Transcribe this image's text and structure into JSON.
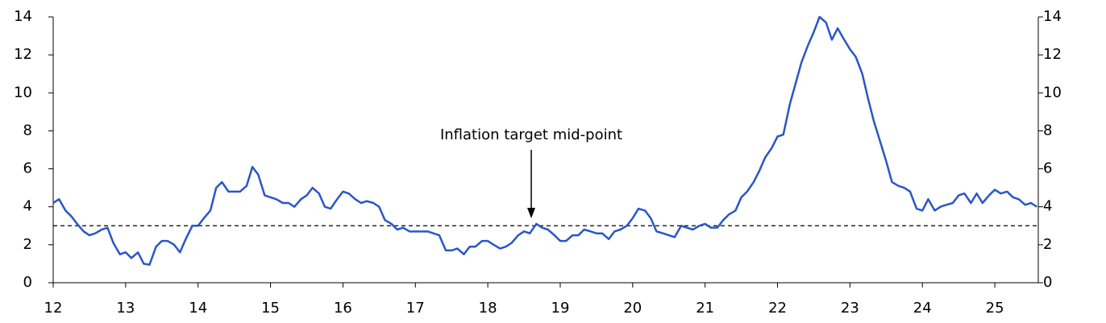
{
  "chart_data": {
    "type": "line",
    "x": [
      12,
      12.08,
      12.17,
      12.25,
      12.33,
      12.42,
      12.5,
      12.58,
      12.67,
      12.75,
      12.83,
      12.92,
      13,
      13.08,
      13.17,
      13.25,
      13.33,
      13.42,
      13.5,
      13.58,
      13.67,
      13.75,
      13.83,
      13.92,
      14,
      14.08,
      14.17,
      14.25,
      14.33,
      14.42,
      14.5,
      14.58,
      14.67,
      14.75,
      14.83,
      14.92,
      15,
      15.08,
      15.17,
      15.25,
      15.33,
      15.42,
      15.5,
      15.58,
      15.67,
      15.75,
      15.83,
      15.92,
      16,
      16.08,
      16.17,
      16.25,
      16.33,
      16.42,
      16.5,
      16.58,
      16.67,
      16.75,
      16.83,
      16.92,
      17,
      17.08,
      17.17,
      17.25,
      17.33,
      17.42,
      17.5,
      17.58,
      17.67,
      17.75,
      17.83,
      17.92,
      18,
      18.08,
      18.17,
      18.25,
      18.33,
      18.42,
      18.5,
      18.58,
      18.67,
      18.75,
      18.83,
      18.92,
      19,
      19.08,
      19.17,
      19.25,
      19.33,
      19.42,
      19.5,
      19.58,
      19.67,
      19.75,
      19.83,
      19.92,
      20,
      20.08,
      20.17,
      20.25,
      20.33,
      20.42,
      20.5,
      20.58,
      20.67,
      20.75,
      20.83,
      20.92,
      21,
      21.08,
      21.17,
      21.25,
      21.33,
      21.42,
      21.5,
      21.58,
      21.67,
      21.75,
      21.83,
      21.92,
      22,
      22.08,
      22.17,
      22.25,
      22.33,
      22.42,
      22.5,
      22.58,
      22.67,
      22.75,
      22.83,
      22.92,
      23,
      23.08,
      23.17,
      23.25,
      23.33,
      23.42,
      23.5,
      23.58,
      23.67,
      23.75,
      23.83,
      23.92,
      24,
      24.08,
      24.17,
      24.25,
      24.33,
      24.42,
      24.5,
      24.58,
      24.67,
      24.75,
      24.83,
      24.92,
      25,
      25.08,
      25.17,
      25.25,
      25.33,
      25.42,
      25.5,
      25.58
    ],
    "series": [
      {
        "color": "#2a56c6",
        "values": [
          4.2,
          4.4,
          3.8,
          3.5,
          3.1,
          2.7,
          2.5,
          2.6,
          2.8,
          2.9,
          2.1,
          1.5,
          1.6,
          1.3,
          1.6,
          1.0,
          0.95,
          1.9,
          2.2,
          2.2,
          2.0,
          1.6,
          2.3,
          3.0,
          3.0,
          3.4,
          3.8,
          5.0,
          5.3,
          4.8,
          4.8,
          4.8,
          5.1,
          6.1,
          5.7,
          4.6,
          4.5,
          4.4,
          4.2,
          4.2,
          4.0,
          4.4,
          4.6,
          5.0,
          4.7,
          4.0,
          3.9,
          4.4,
          4.8,
          4.7,
          4.4,
          4.2,
          4.3,
          4.2,
          4.0,
          3.3,
          3.1,
          2.8,
          2.9,
          2.7,
          2.7,
          2.7,
          2.7,
          2.6,
          2.5,
          1.7,
          1.7,
          1.8,
          1.5,
          1.9,
          1.9,
          2.2,
          2.2,
          2.0,
          1.8,
          1.9,
          2.1,
          2.5,
          2.7,
          2.6,
          3.1,
          2.9,
          2.8,
          2.5,
          2.2,
          2.2,
          2.5,
          2.5,
          2.8,
          2.7,
          2.6,
          2.6,
          2.3,
          2.7,
          2.8,
          3.0,
          3.4,
          3.9,
          3.8,
          3.4,
          2.7,
          2.6,
          2.5,
          2.4,
          3.0,
          2.9,
          2.8,
          3.0,
          3.1,
          2.9,
          2.9,
          3.3,
          3.6,
          3.8,
          4.5,
          4.8,
          5.3,
          5.9,
          6.6,
          7.1,
          7.7,
          7.8,
          9.4,
          10.5,
          11.6,
          12.5,
          13.2,
          14.0,
          13.7,
          12.8,
          13.4,
          12.8,
          12.3,
          11.9,
          11.0,
          9.7,
          8.5,
          7.4,
          6.4,
          5.3,
          5.1,
          5.0,
          4.8,
          3.9,
          3.8,
          4.4,
          3.8,
          4.0,
          4.1,
          4.2,
          4.6,
          4.7,
          4.2,
          4.7,
          4.2,
          4.6,
          4.9,
          4.7,
          4.8,
          4.5,
          4.4,
          4.1,
          4.2,
          4.0
        ]
      }
    ],
    "xlim": [
      12,
      25.6
    ],
    "xticks": [
      12,
      13,
      14,
      15,
      16,
      17,
      18,
      19,
      20,
      21,
      22,
      23,
      24,
      25
    ],
    "ylim": [
      0,
      14
    ],
    "yticks": [
      0,
      2,
      4,
      6,
      8,
      10,
      12,
      14
    ],
    "y2lim": [
      0,
      14
    ],
    "y2ticks": [
      0,
      2,
      4,
      6,
      8,
      10,
      12,
      14
    ],
    "reference_line": 3,
    "annotation": {
      "text": "Inflation target mid-point",
      "x": 18.6
    }
  }
}
